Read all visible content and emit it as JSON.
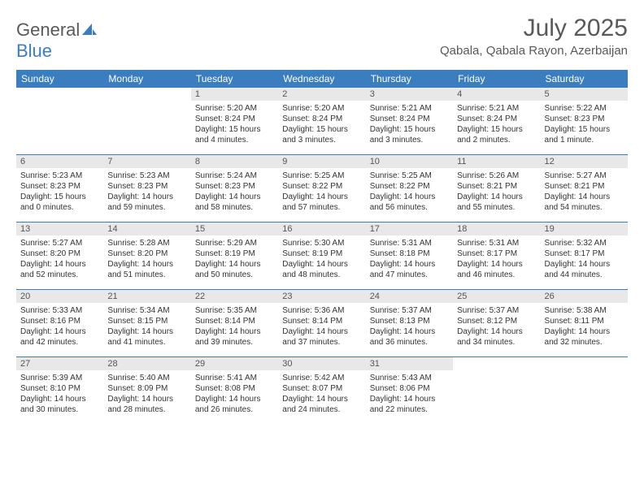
{
  "logo": {
    "text1": "General",
    "text2": "Blue"
  },
  "title": "July 2025",
  "location": "Qabala, Qabala Rayon, Azerbaijan",
  "headerBg": "#3a7ebf",
  "dayNumBg": "#e8e8e8",
  "days": [
    "Sunday",
    "Monday",
    "Tuesday",
    "Wednesday",
    "Thursday",
    "Friday",
    "Saturday"
  ],
  "weeks": [
    [
      null,
      null,
      {
        "n": "1",
        "sr": "Sunrise: 5:20 AM",
        "ss": "Sunset: 8:24 PM",
        "d1": "Daylight: 15 hours",
        "d2": "and 4 minutes."
      },
      {
        "n": "2",
        "sr": "Sunrise: 5:20 AM",
        "ss": "Sunset: 8:24 PM",
        "d1": "Daylight: 15 hours",
        "d2": "and 3 minutes."
      },
      {
        "n": "3",
        "sr": "Sunrise: 5:21 AM",
        "ss": "Sunset: 8:24 PM",
        "d1": "Daylight: 15 hours",
        "d2": "and 3 minutes."
      },
      {
        "n": "4",
        "sr": "Sunrise: 5:21 AM",
        "ss": "Sunset: 8:24 PM",
        "d1": "Daylight: 15 hours",
        "d2": "and 2 minutes."
      },
      {
        "n": "5",
        "sr": "Sunrise: 5:22 AM",
        "ss": "Sunset: 8:23 PM",
        "d1": "Daylight: 15 hours",
        "d2": "and 1 minute."
      }
    ],
    [
      {
        "n": "6",
        "sr": "Sunrise: 5:23 AM",
        "ss": "Sunset: 8:23 PM",
        "d1": "Daylight: 15 hours",
        "d2": "and 0 minutes."
      },
      {
        "n": "7",
        "sr": "Sunrise: 5:23 AM",
        "ss": "Sunset: 8:23 PM",
        "d1": "Daylight: 14 hours",
        "d2": "and 59 minutes."
      },
      {
        "n": "8",
        "sr": "Sunrise: 5:24 AM",
        "ss": "Sunset: 8:23 PM",
        "d1": "Daylight: 14 hours",
        "d2": "and 58 minutes."
      },
      {
        "n": "9",
        "sr": "Sunrise: 5:25 AM",
        "ss": "Sunset: 8:22 PM",
        "d1": "Daylight: 14 hours",
        "d2": "and 57 minutes."
      },
      {
        "n": "10",
        "sr": "Sunrise: 5:25 AM",
        "ss": "Sunset: 8:22 PM",
        "d1": "Daylight: 14 hours",
        "d2": "and 56 minutes."
      },
      {
        "n": "11",
        "sr": "Sunrise: 5:26 AM",
        "ss": "Sunset: 8:21 PM",
        "d1": "Daylight: 14 hours",
        "d2": "and 55 minutes."
      },
      {
        "n": "12",
        "sr": "Sunrise: 5:27 AM",
        "ss": "Sunset: 8:21 PM",
        "d1": "Daylight: 14 hours",
        "d2": "and 54 minutes."
      }
    ],
    [
      {
        "n": "13",
        "sr": "Sunrise: 5:27 AM",
        "ss": "Sunset: 8:20 PM",
        "d1": "Daylight: 14 hours",
        "d2": "and 52 minutes."
      },
      {
        "n": "14",
        "sr": "Sunrise: 5:28 AM",
        "ss": "Sunset: 8:20 PM",
        "d1": "Daylight: 14 hours",
        "d2": "and 51 minutes."
      },
      {
        "n": "15",
        "sr": "Sunrise: 5:29 AM",
        "ss": "Sunset: 8:19 PM",
        "d1": "Daylight: 14 hours",
        "d2": "and 50 minutes."
      },
      {
        "n": "16",
        "sr": "Sunrise: 5:30 AM",
        "ss": "Sunset: 8:19 PM",
        "d1": "Daylight: 14 hours",
        "d2": "and 48 minutes."
      },
      {
        "n": "17",
        "sr": "Sunrise: 5:31 AM",
        "ss": "Sunset: 8:18 PM",
        "d1": "Daylight: 14 hours",
        "d2": "and 47 minutes."
      },
      {
        "n": "18",
        "sr": "Sunrise: 5:31 AM",
        "ss": "Sunset: 8:17 PM",
        "d1": "Daylight: 14 hours",
        "d2": "and 46 minutes."
      },
      {
        "n": "19",
        "sr": "Sunrise: 5:32 AM",
        "ss": "Sunset: 8:17 PM",
        "d1": "Daylight: 14 hours",
        "d2": "and 44 minutes."
      }
    ],
    [
      {
        "n": "20",
        "sr": "Sunrise: 5:33 AM",
        "ss": "Sunset: 8:16 PM",
        "d1": "Daylight: 14 hours",
        "d2": "and 42 minutes."
      },
      {
        "n": "21",
        "sr": "Sunrise: 5:34 AM",
        "ss": "Sunset: 8:15 PM",
        "d1": "Daylight: 14 hours",
        "d2": "and 41 minutes."
      },
      {
        "n": "22",
        "sr": "Sunrise: 5:35 AM",
        "ss": "Sunset: 8:14 PM",
        "d1": "Daylight: 14 hours",
        "d2": "and 39 minutes."
      },
      {
        "n": "23",
        "sr": "Sunrise: 5:36 AM",
        "ss": "Sunset: 8:14 PM",
        "d1": "Daylight: 14 hours",
        "d2": "and 37 minutes."
      },
      {
        "n": "24",
        "sr": "Sunrise: 5:37 AM",
        "ss": "Sunset: 8:13 PM",
        "d1": "Daylight: 14 hours",
        "d2": "and 36 minutes."
      },
      {
        "n": "25",
        "sr": "Sunrise: 5:37 AM",
        "ss": "Sunset: 8:12 PM",
        "d1": "Daylight: 14 hours",
        "d2": "and 34 minutes."
      },
      {
        "n": "26",
        "sr": "Sunrise: 5:38 AM",
        "ss": "Sunset: 8:11 PM",
        "d1": "Daylight: 14 hours",
        "d2": "and 32 minutes."
      }
    ],
    [
      {
        "n": "27",
        "sr": "Sunrise: 5:39 AM",
        "ss": "Sunset: 8:10 PM",
        "d1": "Daylight: 14 hours",
        "d2": "and 30 minutes."
      },
      {
        "n": "28",
        "sr": "Sunrise: 5:40 AM",
        "ss": "Sunset: 8:09 PM",
        "d1": "Daylight: 14 hours",
        "d2": "and 28 minutes."
      },
      {
        "n": "29",
        "sr": "Sunrise: 5:41 AM",
        "ss": "Sunset: 8:08 PM",
        "d1": "Daylight: 14 hours",
        "d2": "and 26 minutes."
      },
      {
        "n": "30",
        "sr": "Sunrise: 5:42 AM",
        "ss": "Sunset: 8:07 PM",
        "d1": "Daylight: 14 hours",
        "d2": "and 24 minutes."
      },
      {
        "n": "31",
        "sr": "Sunrise: 5:43 AM",
        "ss": "Sunset: 8:06 PM",
        "d1": "Daylight: 14 hours",
        "d2": "and 22 minutes."
      },
      null,
      null
    ]
  ]
}
